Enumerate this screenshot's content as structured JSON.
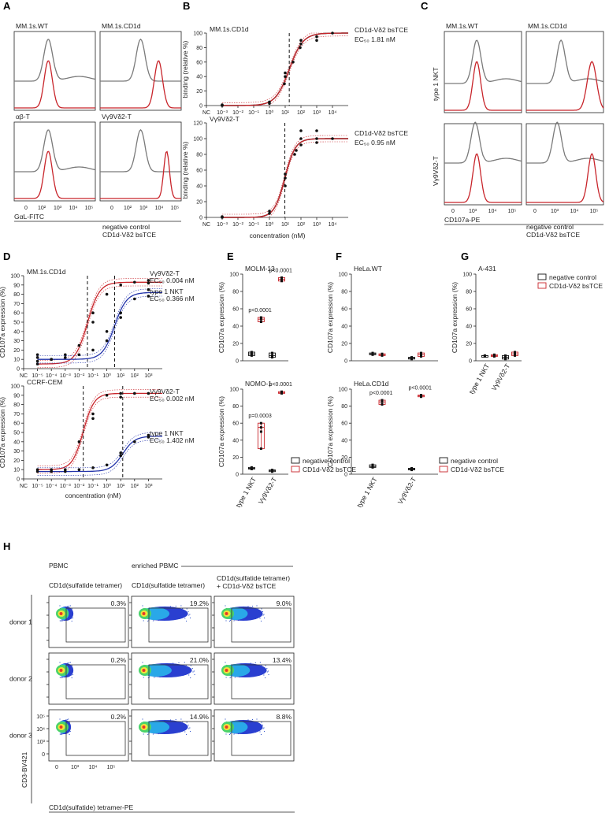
{
  "colors": {
    "red": "#c8252b",
    "gray": "#7a7a7a",
    "blue": "#2233aa",
    "black": "#111111"
  },
  "panel_labels": [
    "A",
    "B",
    "C",
    "D",
    "E",
    "F",
    "G",
    "H"
  ],
  "legend": {
    "negative": "negative control",
    "bstce": "CD1d-Vδ2 bsTCE"
  },
  "panelA": {
    "titles": [
      "MM.1s.WT",
      "MM.1s.CD1d",
      "αβ-T",
      "Vγ9Vδ2-T"
    ],
    "xlabel": "GαL-FITC",
    "ticks": [
      "0",
      "10²",
      "10³",
      "10⁴",
      "10⁵"
    ]
  },
  "panelC": {
    "titles": [
      "MM.1s.WT",
      "MM.1s.CD1d"
    ],
    "rows": [
      "type 1 NKT",
      "Vγ9Vδ2-T"
    ],
    "xlabel": "CD107a-PE",
    "ticks": [
      "0",
      "10³",
      "10⁴",
      "10⁵"
    ]
  },
  "panelH": {
    "col_titles": [
      "PBMC",
      "enriched PBMC"
    ],
    "sub_titles": [
      "CD1d(sulfatide tetramer)",
      "CD1d(sulfatide tetramer)"
    ],
    "red_sub_1": "CD1d(sulfatide tetramer)",
    "red_sub_2": "+ CD1d-Vδ2 bsTCE",
    "rows": [
      "donor 1",
      "donor 2",
      "donor 3"
    ],
    "percents": [
      [
        "0.3%",
        "19.2%",
        "9.0%"
      ],
      [
        "0.2%",
        "21.0%",
        "13.4%"
      ],
      [
        "0.2%",
        "14.9%",
        "8.8%"
      ]
    ],
    "ylabel": "CD3-BV421",
    "xlabel": "CD1d(sulfatide) tetramer-PE",
    "yticks": [
      "10⁵",
      "10⁴",
      "10³",
      "0"
    ],
    "xticks": [
      "0",
      "10³",
      "10⁴",
      "10⁵"
    ]
  },
  "chart_data": [
    {
      "id": "B-top",
      "type": "line",
      "title": "MM.1s.CD1d",
      "ylabel": "binding (relative %)",
      "xlabel": "",
      "ylim": [
        0,
        100
      ],
      "yticks": [
        "0",
        "20",
        "40",
        "60",
        "80",
        "100"
      ],
      "xticks": [
        "NC",
        "10⁻³",
        "10⁻²",
        "10⁻¹",
        "10⁰",
        "10¹",
        "10²",
        "10³",
        "10⁴"
      ],
      "series": [
        {
          "name": "CD1d-Vδ2 bsTCE",
          "ec50_label": "EC₅₀ 1.81 nM",
          "log_ec50": 0.258,
          "bottom": 0,
          "top": 100,
          "hill": 1.0,
          "points": [
            [
              -4,
              0
            ],
            [
              -4,
              1
            ],
            [
              -1,
              3
            ],
            [
              -1,
              5
            ],
            [
              -0.05,
              30
            ],
            [
              0,
              40
            ],
            [
              0,
              45
            ],
            [
              0.5,
              60
            ],
            [
              0.95,
              80
            ],
            [
              1,
              85
            ],
            [
              1,
              90
            ],
            [
              2,
              90
            ],
            [
              2,
              95
            ],
            [
              3,
              100
            ]
          ]
        }
      ]
    },
    {
      "id": "B-bottom",
      "type": "line",
      "title": "Vγ9Vδ2-T",
      "ylabel": "binding (relative %)",
      "xlabel": "concentration (nM)",
      "ylim": [
        0,
        120
      ],
      "yticks": [
        "0",
        "20",
        "40",
        "60",
        "80",
        "100",
        "120"
      ],
      "xticks": [
        "NC",
        "10⁻³",
        "10⁻²",
        "10⁻¹",
        "10⁰",
        "10¹",
        "10²",
        "10³",
        "10⁴"
      ],
      "series": [
        {
          "name": "CD1d-Vδ2 bsTCE",
          "ec50_label": "EC₅₀ 0.95 nM",
          "log_ec50": -0.022,
          "bottom": 0,
          "top": 100,
          "hill": 1.3,
          "points": [
            [
              -4,
              0
            ],
            [
              -4,
              1
            ],
            [
              -1,
              5
            ],
            [
              -1,
              8
            ],
            [
              0,
              40
            ],
            [
              0,
              50
            ],
            [
              0,
              55
            ],
            [
              0.6,
              80
            ],
            [
              0.7,
              85
            ],
            [
              1,
              100
            ],
            [
              1,
              110
            ],
            [
              1,
              92
            ],
            [
              2,
              100
            ],
            [
              2,
              110
            ],
            [
              2,
              95
            ],
            [
              3,
              100
            ]
          ]
        }
      ]
    },
    {
      "id": "D-top",
      "type": "line",
      "title": "MM.1s.CD1d",
      "ylabel": "CD107a expression (%)",
      "xlabel": "",
      "ylim": [
        0,
        100
      ],
      "yticks": [
        "0",
        "10",
        "20",
        "30",
        "40",
        "50",
        "60",
        "70",
        "80",
        "90",
        "100"
      ],
      "xticks": [
        "NC",
        "10⁻⁵",
        "10⁻⁴",
        "10⁻³",
        "10⁻²",
        "10⁻¹",
        "10⁰",
        "10¹",
        "10²",
        "10³"
      ],
      "series": [
        {
          "name": "Vγ9Vδ2-T",
          "ec50_label": "EC₅₀ 0.004 nM",
          "log_ec50": -2.4,
          "bottom": 5,
          "top": 93,
          "hill": 1.0,
          "color": "red",
          "points": [
            [
              -6,
              15
            ],
            [
              -6,
              5
            ],
            [
              -5,
              10
            ],
            [
              -4,
              15
            ],
            [
              -3,
              25
            ],
            [
              -2,
              50
            ],
            [
              -2,
              60
            ],
            [
              -1,
              80
            ],
            [
              0,
              90
            ],
            [
              1,
              93
            ],
            [
              2,
              92
            ],
            [
              2,
              95
            ]
          ]
        },
        {
          "name": "type 1 NKT",
          "ec50_label": "EC₅₀ 0.366 nM",
          "log_ec50": -0.44,
          "bottom": 10,
          "top": 82,
          "hill": 1.0,
          "color": "blue",
          "points": [
            [
              -6,
              12
            ],
            [
              -6,
              8
            ],
            [
              -5,
              10
            ],
            [
              -4,
              12
            ],
            [
              -3,
              15
            ],
            [
              -2,
              20
            ],
            [
              -1,
              40
            ],
            [
              -1,
              30
            ],
            [
              0,
              55
            ],
            [
              0,
              60
            ],
            [
              1,
              75
            ],
            [
              2,
              78
            ],
            [
              2,
              85
            ]
          ]
        }
      ]
    },
    {
      "id": "D-bottom",
      "type": "line",
      "title": "CCRF-CEM",
      "ylabel": "CD107a expression (%)",
      "xlabel": "concentration (nM)",
      "ylim": [
        0,
        100
      ],
      "yticks": [
        "0",
        "10",
        "20",
        "30",
        "40",
        "50",
        "60",
        "70",
        "80",
        "90",
        "100"
      ],
      "xticks": [
        "NC",
        "10⁻⁵",
        "10⁻⁴",
        "10⁻³",
        "10⁻²",
        "10⁻¹",
        "10⁰",
        "10¹",
        "10²",
        "10³"
      ],
      "series": [
        {
          "name": "Vγ9Vδ2-T",
          "ec50_label": "EC₅₀ 0.002 nM",
          "log_ec50": -2.7,
          "bottom": 10,
          "top": 92,
          "hill": 1.1,
          "color": "red",
          "points": [
            [
              -6,
              10
            ],
            [
              -5,
              10
            ],
            [
              -4,
              10
            ],
            [
              -3,
              40
            ],
            [
              -2,
              65
            ],
            [
              -2,
              70
            ],
            [
              -1,
              90
            ],
            [
              0,
              92
            ],
            [
              1,
              92
            ],
            [
              2,
              92
            ],
            [
              0,
              88
            ]
          ]
        },
        {
          "name": "type 1 NKT",
          "ec50_label": "EC₅₀ 1.402 nM",
          "log_ec50": 0.147,
          "bottom": 8,
          "top": 46,
          "hill": 1.0,
          "color": "blue",
          "points": [
            [
              -6,
              8
            ],
            [
              -5,
              8
            ],
            [
              -4,
              8
            ],
            [
              -3,
              10
            ],
            [
              -2,
              12
            ],
            [
              -1,
              15
            ],
            [
              0,
              25
            ],
            [
              0,
              28
            ],
            [
              1,
              40
            ],
            [
              2,
              45
            ],
            [
              2,
              47
            ]
          ]
        }
      ]
    },
    {
      "id": "E-top",
      "type": "box",
      "title": "MOLM-13",
      "ylabel": "CD107a expression (%)",
      "ylim": [
        0,
        100
      ],
      "yticks": [
        "0",
        "20",
        "40",
        "60",
        "80",
        "100"
      ],
      "categories": [
        "type 1 NKT",
        "Vγ9Vδ2-T"
      ],
      "groups": [
        {
          "neg": [
            6,
            8,
            10
          ],
          "pos": [
            45,
            48,
            50
          ]
        },
        {
          "neg": [
            4,
            6,
            9
          ],
          "pos": [
            92,
            94,
            96
          ]
        }
      ],
      "pvalues": [
        "p<0.0001",
        "p<0.0001"
      ]
    },
    {
      "id": "E-bottom",
      "type": "box",
      "title": "NOMO-1",
      "ylabel": "CD107a expression (%)",
      "ylim": [
        0,
        100
      ],
      "yticks": [
        "0",
        "20",
        "40",
        "60",
        "80",
        "100"
      ],
      "categories": [
        "type 1 NKT",
        "Vγ9Vδ2-T"
      ],
      "groups": [
        {
          "neg": [
            6,
            7,
            8
          ],
          "pos": [
            30,
            50,
            55,
            60
          ]
        },
        {
          "neg": [
            3,
            4,
            5
          ],
          "pos": [
            95,
            96,
            97
          ]
        }
      ],
      "pvalues": [
        "p=0.0003",
        "p<0.0001"
      ]
    },
    {
      "id": "F-top",
      "type": "box",
      "title": "HeLa.WT",
      "ylabel": "CD107a expression (%)",
      "ylim": [
        0,
        100
      ],
      "yticks": [
        "0",
        "20",
        "40",
        "60",
        "80",
        "100"
      ],
      "categories": [
        "type 1 NKT",
        "Vγ9Vδ2-T"
      ],
      "groups": [
        {
          "neg": [
            7,
            8,
            9
          ],
          "pos": [
            6,
            7,
            8
          ]
        },
        {
          "neg": [
            2,
            3,
            4
          ],
          "pos": [
            5,
            7,
            9
          ]
        }
      ],
      "pvalues": [
        "",
        ""
      ]
    },
    {
      "id": "F-bottom",
      "type": "box",
      "title": "HeLa.CD1d",
      "ylabel": "CD107a expression (%)",
      "ylim": [
        0,
        100
      ],
      "yticks": [
        "0",
        "20",
        "40",
        "60",
        "80",
        "100"
      ],
      "categories": [
        "type 1 NKT",
        "Vγ9Vδ2-T"
      ],
      "groups": [
        {
          "neg": [
            8,
            9,
            11
          ],
          "pos": [
            82,
            85,
            87
          ]
        },
        {
          "neg": [
            5,
            6,
            7
          ],
          "pos": [
            91,
            92,
            93
          ]
        }
      ],
      "pvalues": [
        "p<0.0001",
        "p<0.0001"
      ]
    },
    {
      "id": "G",
      "type": "box",
      "title": "A-431",
      "ylabel": "CD107a expression (%)",
      "ylim": [
        0,
        100
      ],
      "yticks": [
        "0",
        "20",
        "40",
        "60",
        "80",
        "100"
      ],
      "categories": [
        "type 1 NKT",
        "Vγ9Vδ2-T"
      ],
      "groups": [
        {
          "neg": [
            5,
            6,
            6
          ],
          "pos": [
            5,
            6,
            7
          ]
        },
        {
          "neg": [
            2,
            4,
            6
          ],
          "pos": [
            6,
            8,
            10
          ]
        }
      ],
      "pvalues": [
        "",
        ""
      ]
    }
  ]
}
